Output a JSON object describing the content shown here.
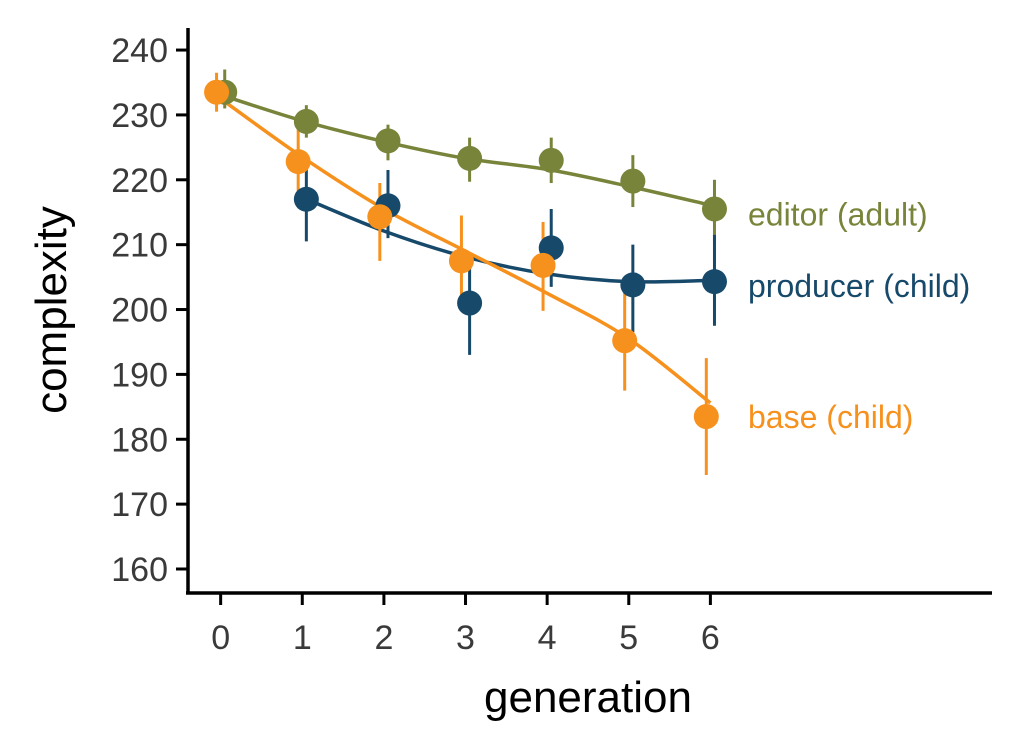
{
  "chart_data": {
    "type": "scatter",
    "title": "",
    "xlabel": "generation",
    "ylabel": "complexity",
    "xlim": [
      -0.4,
      9.45
    ],
    "ylim": [
      156.3,
      243.4
    ],
    "xticks": [
      0,
      1,
      2,
      3,
      4,
      5,
      6
    ],
    "yticks": [
      160,
      170,
      180,
      190,
      200,
      210,
      220,
      230,
      240
    ],
    "grid": false,
    "legend": "direct labels at right end of each series",
    "series": [
      {
        "name": "editor (adult)",
        "color": "#77843a",
        "dodge": 0.05,
        "x": [
          0,
          1,
          2,
          3,
          4,
          5,
          6
        ],
        "y": [
          233.5,
          229,
          226,
          223.3,
          223,
          219.8,
          215.5
        ],
        "err_low": [
          231,
          226.5,
          223,
          219.7,
          219.5,
          215.8,
          210.5
        ],
        "err_high": [
          237,
          231.5,
          228.5,
          226.5,
          226.5,
          223.8,
          220
        ],
        "fit": [
          [
            0,
            233.1
          ],
          [
            1,
            229.1
          ],
          [
            2,
            225.9
          ],
          [
            3,
            223.3
          ],
          [
            4,
            221.6
          ],
          [
            5,
            219
          ],
          [
            6,
            216.1
          ]
        ]
      },
      {
        "name": "producer (child)",
        "color": "#17496b",
        "dodge": 0.05,
        "x": [
          1,
          2,
          3,
          4,
          5,
          6
        ],
        "y": [
          217,
          216,
          201,
          209.5,
          203.8,
          204.3
        ],
        "err_low": [
          210.5,
          211,
          193,
          203.5,
          196.5,
          197.5
        ],
        "err_high": [
          222.5,
          221.5,
          208.5,
          215.5,
          210,
          211.5
        ],
        "fit": [
          [
            1,
            217.3
          ],
          [
            2,
            212.1
          ],
          [
            3,
            208.1
          ],
          [
            4,
            205.5
          ],
          [
            5,
            204.3
          ],
          [
            6,
            204.5
          ]
        ]
      },
      {
        "name": "base (child)",
        "color": "#f7911d",
        "dodge": -0.05,
        "x": [
          0,
          1,
          2,
          3,
          4,
          5,
          6
        ],
        "y": [
          233.5,
          222.8,
          214.3,
          207.5,
          206.8,
          195.2,
          183.5
        ],
        "err_low": [
          230.5,
          217.5,
          207.5,
          200.5,
          199.8,
          187.5,
          174.5
        ],
        "err_high": [
          236.5,
          228,
          219.5,
          214.5,
          213.5,
          203,
          192.5
        ],
        "fit": [
          [
            0,
            232.5
          ],
          [
            1,
            223.5
          ],
          [
            2,
            215.5
          ],
          [
            3,
            209
          ],
          [
            4,
            202.5
          ],
          [
            5,
            195.5
          ],
          [
            6,
            185.6
          ]
        ]
      }
    ],
    "labels": [
      {
        "text": "editor (adult)",
        "color": "#77843a",
        "y": 214.8
      },
      {
        "text": "producer (child)",
        "color": "#17496b",
        "y": 203.8
      },
      {
        "text": "base (child)",
        "color": "#f7911d",
        "y": 183.6
      }
    ]
  }
}
